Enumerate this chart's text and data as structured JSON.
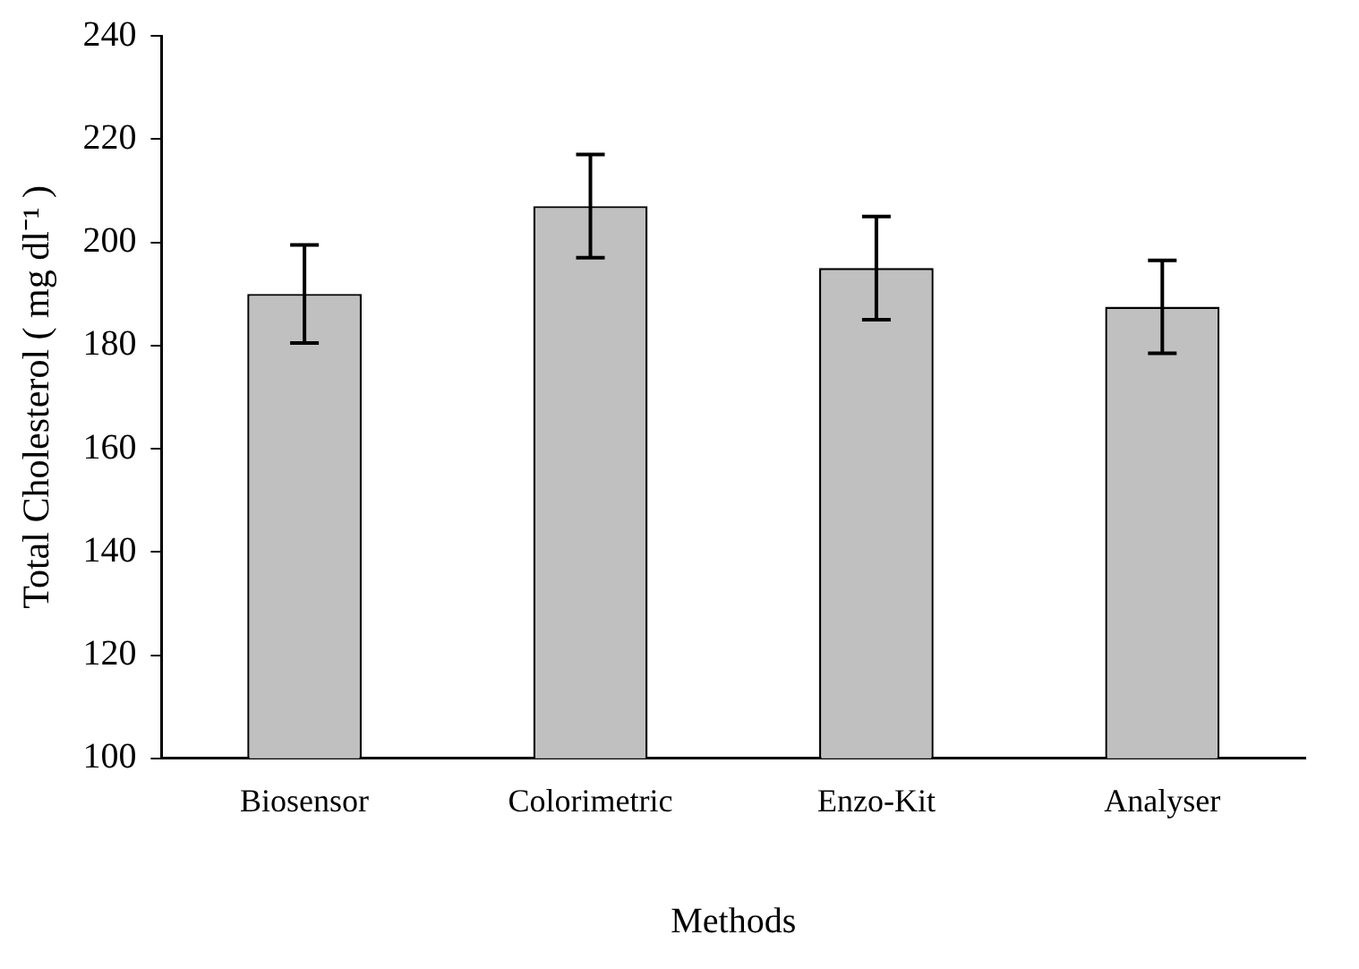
{
  "chart_data": {
    "type": "bar",
    "xlabel": "Methods",
    "ylabel": "Total Cholesterol ( mg dl⁻¹ )",
    "categories": [
      "Biosensor",
      "Colorimetric",
      "Enzo-Kit",
      "Analyser"
    ],
    "values": [
      190,
      207,
      195,
      187.5
    ],
    "errors": [
      9.5,
      10,
      10,
      9
    ],
    "color": "#c0c0c0",
    "ylim": [
      100,
      240
    ],
    "yticks": [
      100,
      120,
      140,
      160,
      180,
      200,
      220,
      240
    ],
    "grid": false,
    "legend": false
  }
}
